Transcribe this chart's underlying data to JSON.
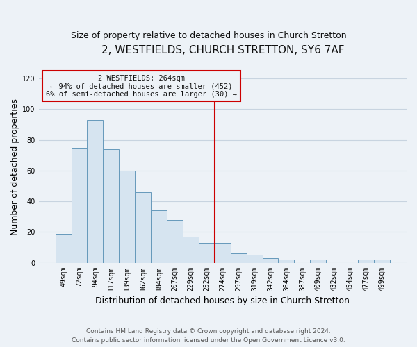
{
  "title": "2, WESTFIELDS, CHURCH STRETTON, SY6 7AF",
  "subtitle": "Size of property relative to detached houses in Church Stretton",
  "xlabel": "Distribution of detached houses by size in Church Stretton",
  "ylabel": "Number of detached properties",
  "bar_labels": [
    "49sqm",
    "72sqm",
    "94sqm",
    "117sqm",
    "139sqm",
    "162sqm",
    "184sqm",
    "207sqm",
    "229sqm",
    "252sqm",
    "274sqm",
    "297sqm",
    "319sqm",
    "342sqm",
    "364sqm",
    "387sqm",
    "409sqm",
    "432sqm",
    "454sqm",
    "477sqm",
    "499sqm"
  ],
  "bar_values": [
    19,
    75,
    93,
    74,
    60,
    46,
    34,
    28,
    17,
    13,
    13,
    6,
    5,
    3,
    2,
    0,
    2,
    0,
    0,
    2,
    2
  ],
  "bar_color": "#d6e4f0",
  "bar_edge_color": "#6699bb",
  "vline_x_index": 10,
  "vline_color": "#cc0000",
  "annotation_title": "2 WESTFIELDS: 264sqm",
  "annotation_line1": "← 94% of detached houses are smaller (452)",
  "annotation_line2": "6% of semi-detached houses are larger (30) →",
  "annotation_box_edge_color": "#cc0000",
  "ylim": [
    0,
    125
  ],
  "yticks": [
    0,
    20,
    40,
    60,
    80,
    100,
    120
  ],
  "background_color": "#edf2f7",
  "grid_color": "#c8d4e0",
  "title_fontsize": 11,
  "subtitle_fontsize": 9,
  "xlabel_fontsize": 9,
  "ylabel_fontsize": 9,
  "tick_fontsize": 7,
  "footer_fontsize": 6.5,
  "footer_line1": "Contains HM Land Registry data © Crown copyright and database right 2024.",
  "footer_line2": "Contains public sector information licensed under the Open Government Licence v3.0."
}
